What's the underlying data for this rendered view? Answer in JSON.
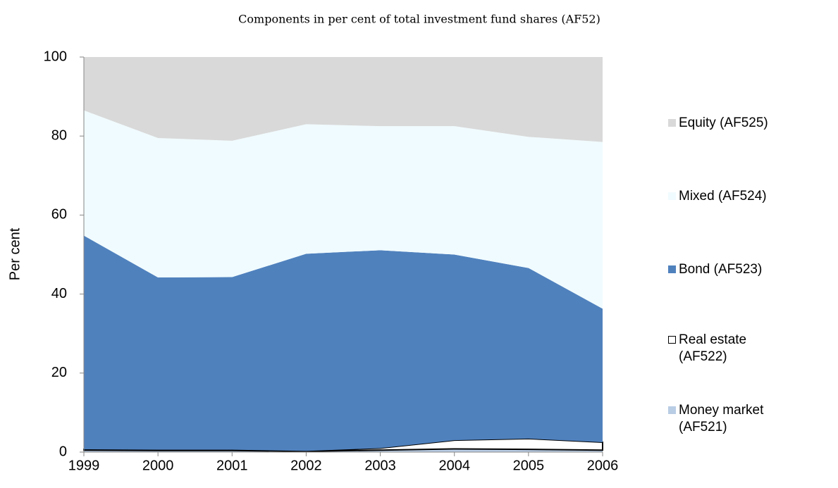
{
  "chart_data": {
    "type": "stacked-area",
    "title": "Components in per cent of total investment fund shares (AF52)",
    "y_label": "Per cent",
    "categories": [
      "1999",
      "2000",
      "2001",
      "2002",
      "2003",
      "2004",
      "2005",
      "2006"
    ],
    "series": [
      {
        "name": "Money market (AF521)",
        "color": "#b9cde5",
        "values": [
          0.5,
          0.4,
          0.4,
          0.2,
          0.5,
          0.8,
          0.7,
          0.5
        ]
      },
      {
        "name": "Real estate (AF522)",
        "color": "#ffffff",
        "values": [
          0.2,
          0.2,
          0.2,
          0.1,
          0.5,
          2.2,
          2.7,
          2.0
        ]
      },
      {
        "name": "Bond (AF523)",
        "color": "#4f81bd",
        "values": [
          54.1,
          43.6,
          43.7,
          49.9,
          50.1,
          47.0,
          43.2,
          33.8
        ]
      },
      {
        "name": "Mixed (AF524)",
        "color": "#f0fbff",
        "values": [
          31.7,
          35.3,
          34.5,
          32.8,
          31.4,
          32.5,
          33.2,
          42.2
        ]
      },
      {
        "name": "Equity (AF525)",
        "color": "#d9d9d9",
        "values": [
          13.5,
          20.5,
          21.2,
          17.0,
          17.5,
          17.5,
          20.2,
          21.5
        ]
      }
    ],
    "ylim": [
      0,
      100
    ],
    "yticks": [
      0,
      20,
      40,
      60,
      80,
      100
    ]
  }
}
